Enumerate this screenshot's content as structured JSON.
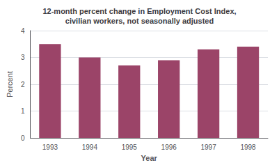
{
  "chart_data": {
    "type": "bar",
    "title": "12-month percent change in Employment Cost Index,\ncivilian workers, not seasonally adjusted",
    "xlabel": "Year",
    "ylabel": "Percent",
    "categories": [
      "1993",
      "1994",
      "1995",
      "1996",
      "1997",
      "1998"
    ],
    "values": [
      3.5,
      3.0,
      2.7,
      2.9,
      3.3,
      3.4
    ],
    "color": "#9B4468",
    "ylim": [
      0,
      4
    ],
    "yticks": [
      0,
      1,
      2,
      3,
      4
    ],
    "grid": true
  }
}
